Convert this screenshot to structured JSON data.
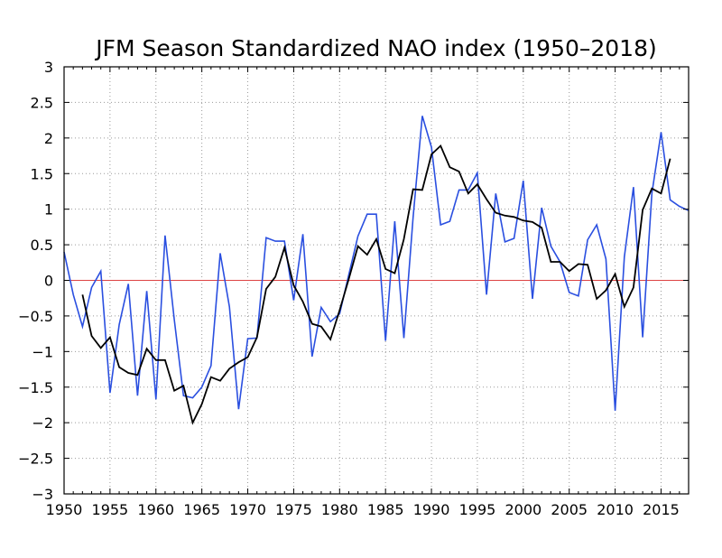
{
  "chart_data": {
    "type": "line",
    "title": "JFM Season Standardized NAO index (1950–2018)",
    "xlabel": "",
    "ylabel": "",
    "xlim": [
      1950,
      2018
    ],
    "ylim": [
      -3,
      3
    ],
    "grid": true,
    "x_ticks": [
      "1950",
      "1955",
      "1960",
      "1965",
      "1970",
      "1975",
      "1980",
      "1985",
      "1990",
      "1995",
      "2000",
      "2005",
      "2010",
      "2015"
    ],
    "y_ticks": [
      "3",
      "2.5",
      "2",
      "1.5",
      "1",
      "0.5",
      "0",
      "−0.5",
      "−1",
      "−1.5",
      "−2",
      "−2.5",
      "−3"
    ],
    "reference_line": {
      "y": 0,
      "color": "#dd4444"
    },
    "series": [
      {
        "color": "#2a4fe0",
        "x": [
          1950,
          1951,
          1952,
          1953,
          1954,
          1955,
          1956,
          1957,
          1958,
          1959,
          1960,
          1961,
          1962,
          1963,
          1964,
          1965,
          1966,
          1967,
          1968,
          1969,
          1970,
          1971,
          1972,
          1973,
          1974,
          1975,
          1976,
          1977,
          1978,
          1979,
          1980,
          1981,
          1982,
          1983,
          1984,
          1985,
          1986,
          1987,
          1988,
          1989,
          1990,
          1991,
          1992,
          1993,
          1994,
          1995,
          1996,
          1997,
          1998,
          1999,
          2000,
          2001,
          2002,
          2003,
          2004,
          2005,
          2006,
          2007,
          2008,
          2009,
          2010,
          2011,
          2012,
          2013,
          2014,
          2015,
          2016,
          2017,
          2018
        ],
        "values": [
          0.4,
          -0.2,
          -0.65,
          -0.1,
          0.13,
          -1.58,
          -0.62,
          -0.05,
          -1.62,
          -0.15,
          -1.67,
          0.63,
          -0.55,
          -1.62,
          -1.65,
          -1.5,
          -1.2,
          0.38,
          -0.37,
          -1.81,
          -0.82,
          -0.81,
          0.6,
          0.55,
          0.55,
          -0.28,
          0.65,
          -1.07,
          -0.38,
          -0.58,
          -0.47,
          0.08,
          0.62,
          0.93,
          0.93,
          -0.85,
          0.83,
          -0.81,
          0.88,
          2.31,
          1.87,
          0.78,
          0.83,
          1.27,
          1.27,
          1.51,
          -0.2,
          1.22,
          0.54,
          0.59,
          1.4,
          -0.26,
          1.02,
          0.48,
          0.26,
          -0.17,
          -0.22,
          0.57,
          0.78,
          0.3,
          -1.83,
          0.33,
          1.31,
          -0.8,
          1.22,
          2.08,
          1.13,
          1.04,
          0.98
        ]
      },
      {
        "color": "#000000",
        "x": [
          1952,
          1953,
          1954,
          1955,
          1956,
          1957,
          1958,
          1959,
          1960,
          1961,
          1962,
          1963,
          1964,
          1965,
          1966,
          1967,
          1968,
          1969,
          1970,
          1971,
          1972,
          1973,
          1974,
          1975,
          1976,
          1977,
          1978,
          1979,
          1980,
          1981,
          1982,
          1983,
          1984,
          1985,
          1986,
          1987,
          1988,
          1989,
          1990,
          1991,
          1992,
          1993,
          1994,
          1995,
          1996,
          1997,
          1998,
          1999,
          2000,
          2001,
          2002,
          2003,
          2004,
          2005,
          2006,
          2007,
          2008,
          2009,
          2010,
          2011,
          2012,
          2013,
          2014,
          2015,
          2016
        ],
        "values": [
          -0.2,
          -0.78,
          -0.95,
          -0.8,
          -1.22,
          -1.3,
          -1.33,
          -0.96,
          -1.12,
          -1.12,
          -1.55,
          -1.48,
          -2.0,
          -1.74,
          -1.36,
          -1.41,
          -1.24,
          -1.15,
          -1.08,
          -0.8,
          -0.12,
          0.05,
          0.46,
          -0.07,
          -0.3,
          -0.61,
          -0.65,
          -0.83,
          -0.42,
          0.02,
          0.48,
          0.36,
          0.58,
          0.16,
          0.1,
          0.58,
          1.28,
          1.27,
          1.77,
          1.89,
          1.59,
          1.53,
          1.22,
          1.35,
          1.14,
          0.95,
          0.91,
          0.89,
          0.84,
          0.82,
          0.74,
          0.26,
          0.26,
          0.13,
          0.23,
          0.22,
          -0.26,
          -0.14,
          0.09,
          -0.37,
          -0.1,
          0.99,
          1.29,
          1.22,
          1.71
        ]
      }
    ]
  }
}
